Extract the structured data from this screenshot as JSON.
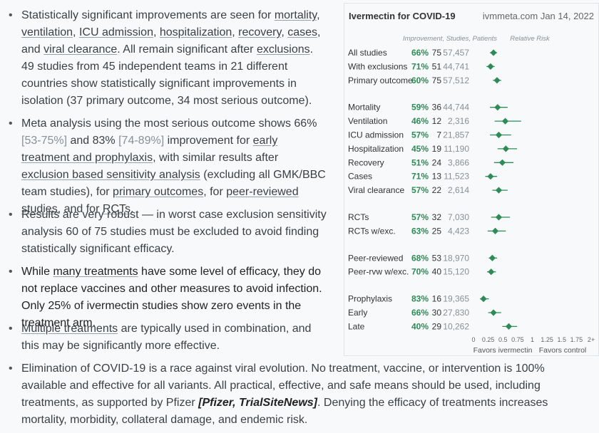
{
  "bullets": {
    "b1": {
      "t1": "Statistically significant improvements are seen for ",
      "l1": "mortality",
      "t2": ", ",
      "l2": "ventilation",
      "t3": ", ",
      "l3": "ICU admission",
      "t4": ", ",
      "l4": "hospitalization",
      "t5": ", ",
      "l5": "recovery",
      "t6": ", ",
      "l6": "cases",
      "t7": ", and ",
      "l7": "viral clearance",
      "t8": ". All remain significant after ",
      "l8": "exclusions",
      "t9": ". 49 studies from 45 independent teams in 21 different countries show statistically significant improvements in isolation (37 primary outcome, 34 most serious outcome)."
    },
    "b2": {
      "t1": "Meta analysis using the most serious outcome shows 66% ",
      "m1": "[53-75%]",
      "t2": " and 83% ",
      "m2": "[74-89%]",
      "t3": " improvement for ",
      "l1": "early treatment and prophylaxis",
      "t4": ", with similar results after ",
      "l2": "exclusion based sensitivity analysis",
      "t5": " (excluding all GMK/BBC team studies), for ",
      "l3": "primary outcomes",
      "t6": ", for ",
      "l4": "peer-reviewed studies",
      "t7": ", and for ",
      "l5": "RCTs",
      "t8": "."
    },
    "b3": {
      "t1": "Results are very robust — in worst case exclusion sensitivity analysis 60 of 75 studies must be excluded to avoid finding statistically significant efficacy."
    },
    "b4": {
      "t1": "While ",
      "l1": "many treatments",
      "t2": " have some level of efficacy, they do not replace vaccines and other measures to avoid infection. Only 25% of ivermectin studies show zero events in the treatment arm."
    },
    "b5": {
      "l1": "Multiple treatments",
      "t1": " are typically used in combination, and this may be significantly more effective."
    },
    "b6": {
      "t1": "Elimination of COVID-19 is a race against viral evolution. No treatment, vaccine, or intervention is 100% available and effective for all variants. All practical, effective, and safe means should be used, including treatments, as supported by Pfizer ",
      "cite": "[Pfizer, TrialSiteNews]",
      "t2": ". Denying the efficacy of treatments increases mortality, morbidity, collateral damage, and endemic risk."
    },
    "bullet_char": "•"
  },
  "chart_data": {
    "type": "forest",
    "title": "Ivermectin for COVID-19",
    "source": "ivmmeta.com Jan 14, 2022",
    "col_header": "Improvement, Studies, Patients",
    "axis_header": "Relative Risk",
    "xlim": [
      0,
      2
    ],
    "x_ticks": [
      "0",
      "0.25",
      "0.5",
      "0.75",
      "1",
      "1.25",
      "1.5",
      "1.75",
      "2+"
    ],
    "x_tick_values": [
      0,
      0.25,
      0.5,
      0.75,
      1,
      1.25,
      1.5,
      1.75,
      2
    ],
    "favors_left": "Favors ivermectin",
    "favors_right": "Favors control",
    "colors": {
      "marker": "#2e8b57",
      "improvement": "#2e8b57"
    },
    "groups": [
      {
        "rows": [
          {
            "label": "All studies",
            "improvement": "66%",
            "studies": "75",
            "patients": "57,457",
            "rr": 0.34,
            "lo": 0.28,
            "hi": 0.4
          },
          {
            "label": "With exclusions",
            "improvement": "71%",
            "studies": "51",
            "patients": "44,741",
            "rr": 0.29,
            "lo": 0.22,
            "hi": 0.36
          },
          {
            "label": "Primary outcome",
            "improvement": "60%",
            "studies": "75",
            "patients": "57,512",
            "rr": 0.4,
            "lo": 0.33,
            "hi": 0.47
          }
        ]
      },
      {
        "rows": [
          {
            "label": "Mortality",
            "improvement": "59%",
            "studies": "36",
            "patients": "44,744",
            "rr": 0.41,
            "lo": 0.28,
            "hi": 0.58
          },
          {
            "label": "Ventilation",
            "improvement": "46%",
            "studies": "12",
            "patients": "2,316",
            "rr": 0.54,
            "lo": 0.36,
            "hi": 0.81
          },
          {
            "label": "ICU admission",
            "improvement": "57%",
            "studies": "7",
            "patients": "21,857",
            "rr": 0.43,
            "lo": 0.28,
            "hi": 0.64
          },
          {
            "label": "Hospitalization",
            "improvement": "45%",
            "studies": "19",
            "patients": "11,190",
            "rr": 0.55,
            "lo": 0.41,
            "hi": 0.74
          },
          {
            "label": "Recovery",
            "improvement": "51%",
            "studies": "24",
            "patients": "3,866",
            "rr": 0.49,
            "lo": 0.35,
            "hi": 0.68
          },
          {
            "label": "Cases",
            "improvement": "71%",
            "studies": "13",
            "patients": "11,523",
            "rr": 0.29,
            "lo": 0.2,
            "hi": 0.4
          },
          {
            "label": "Viral clearance",
            "improvement": "57%",
            "studies": "22",
            "patients": "2,614",
            "rr": 0.43,
            "lo": 0.32,
            "hi": 0.58
          }
        ]
      },
      {
        "rows": [
          {
            "label": "RCTs",
            "improvement": "57%",
            "studies": "32",
            "patients": "7,030",
            "rr": 0.43,
            "lo": 0.3,
            "hi": 0.62
          },
          {
            "label": "RCTs w/exc.",
            "improvement": "63%",
            "studies": "25",
            "patients": "4,423",
            "rr": 0.37,
            "lo": 0.24,
            "hi": 0.55
          }
        ]
      },
      {
        "rows": [
          {
            "label": "Peer-reviewed",
            "improvement": "68%",
            "studies": "53",
            "patients": "18,970",
            "rr": 0.32,
            "lo": 0.26,
            "hi": 0.4
          },
          {
            "label": "Peer-rvw w/exc.",
            "improvement": "70%",
            "studies": "40",
            "patients": "15,120",
            "rr": 0.3,
            "lo": 0.23,
            "hi": 0.38
          }
        ]
      },
      {
        "rows": [
          {
            "label": "Prophylaxis",
            "improvement": "83%",
            "studies": "16",
            "patients": "19,365",
            "rr": 0.17,
            "lo": 0.11,
            "hi": 0.26
          },
          {
            "label": "Early",
            "improvement": "66%",
            "studies": "30",
            "patients": "27,830",
            "rr": 0.34,
            "lo": 0.25,
            "hi": 0.47
          },
          {
            "label": "Late",
            "improvement": "40%",
            "studies": "29",
            "patients": "10,262",
            "rr": 0.6,
            "lo": 0.49,
            "hi": 0.74
          }
        ]
      }
    ]
  }
}
